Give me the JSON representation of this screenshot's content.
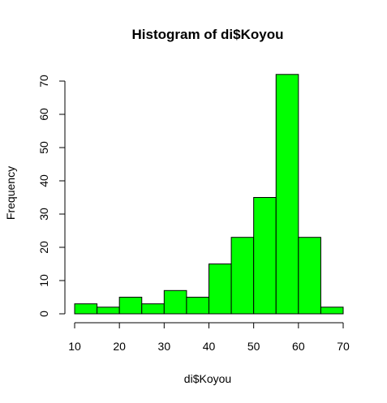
{
  "chart_data": {
    "type": "bar",
    "title": "Histogram of di$Koyou",
    "xlabel": "di$Koyou",
    "ylabel": "Frequency",
    "bin_edges": [
      10,
      15,
      20,
      25,
      30,
      35,
      40,
      45,
      50,
      55,
      60,
      65,
      70
    ],
    "values": [
      3,
      2,
      5,
      3,
      7,
      5,
      15,
      23,
      35,
      72,
      23,
      2
    ],
    "xlim": [
      10,
      70
    ],
    "ylim": [
      0,
      70
    ],
    "xticks": [
      10,
      20,
      30,
      40,
      50,
      60,
      70
    ],
    "yticks": [
      0,
      10,
      20,
      30,
      40,
      50,
      60,
      70
    ],
    "bar_color": "#00FF00",
    "grid": false,
    "legend": "none"
  }
}
